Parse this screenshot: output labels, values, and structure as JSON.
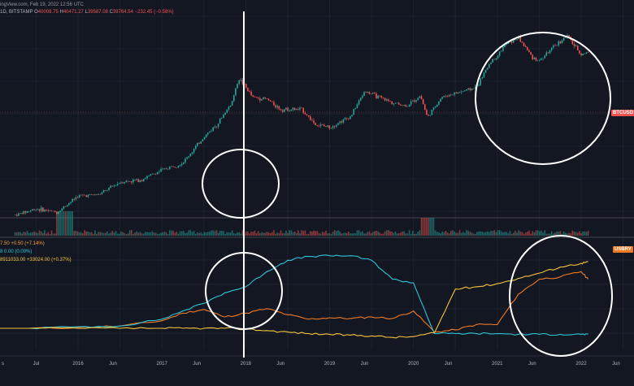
{
  "header": {
    "source_line": "ingView.com, Feb 19, 2022 12:56 UTC",
    "symbol": "1D, BITSTAMP",
    "open_label": "O",
    "open": "40008.75",
    "high_label": "H",
    "high": "40471.27",
    "low_label": "L",
    "low": "39587.08",
    "close_label": "C",
    "close": "39764.54",
    "change": "−232.45 (−0.58%)"
  },
  "price_tag": "BTCUSD",
  "indicator_tag": "USBRY",
  "indicators": [
    {
      "text": "7.50  +0.50 (+7.14%)",
      "color": "#ff9f43"
    },
    {
      "text": "8  0.00 (0.00%)",
      "color": "#26c6da"
    },
    {
      "text": "8911033.00  +33024.00 (+0.37%)",
      "color": "#f6c33b"
    }
  ],
  "colors": {
    "background": "#131722",
    "up": "#26a69a",
    "down": "#ef5350",
    "series_orange": "#f07a22",
    "series_cyan": "#2ec4dc",
    "series_yellow": "#f6c33b",
    "annotation": "#ffffff"
  },
  "annotations": [
    "circle",
    "circle",
    "circle",
    "circle",
    "vertical-line"
  ],
  "chart_data": [
    {
      "type": "line",
      "title": "BTCUSD",
      "style": "candlestick",
      "x": [
        "2015-04",
        "2015-07",
        "2015-10",
        "2016-01",
        "2016-04",
        "2016-07",
        "2016-10",
        "2017-01",
        "2017-04",
        "2017-07",
        "2017-09",
        "2017-11",
        "2017-12",
        "2018-01",
        "2018-02",
        "2018-04",
        "2018-06",
        "2018-09",
        "2018-11",
        "2019-01",
        "2019-04",
        "2019-06",
        "2019-07",
        "2019-10",
        "2019-12",
        "2020-02",
        "2020-03",
        "2020-05",
        "2020-08",
        "2020-10",
        "2020-12",
        "2021-01",
        "2021-02",
        "2021-04",
        "2021-06",
        "2021-07",
        "2021-09",
        "2021-11",
        "2021-12",
        "2022-01",
        "2022-02"
      ],
      "values": [
        230,
        280,
        250,
        420,
        440,
        650,
        700,
        950,
        1200,
        2700,
        4200,
        8000,
        17500,
        13000,
        9500,
        9000,
        6500,
        6500,
        4000,
        3700,
        5200,
        11500,
        10500,
        8000,
        7200,
        10000,
        5000,
        9500,
        11500,
        13000,
        29000,
        35000,
        49000,
        63000,
        34000,
        30000,
        46000,
        67000,
        49000,
        37000,
        39764
      ],
      "xlabel": "",
      "ylabel": "",
      "grid": true
    },
    {
      "type": "line",
      "x": [
        "2015-06",
        "2016-01",
        "2016-07",
        "2017-01",
        "2017-04",
        "2017-07",
        "2017-10",
        "2018-01",
        "2018-04",
        "2018-07",
        "2018-10",
        "2019-01",
        "2019-04",
        "2019-07",
        "2019-10",
        "2020-01",
        "2020-04",
        "2020-07",
        "2020-10",
        "2021-01",
        "2021-04",
        "2021-07",
        "2021-10",
        "2022-01",
        "2022-02"
      ],
      "series": [
        {
          "color": "orange",
          "values": [
            1.0,
            1.1,
            1.3,
            2.0,
            3.0,
            3.5,
            2.5,
            3.0,
            3.6,
            2.8,
            2.2,
            2.4,
            2.3,
            2.5,
            2.3,
            3.3,
            0.5,
            0.8,
            1.5,
            1.5,
            5.5,
            7.5,
            7.8,
            8.5,
            7.5
          ]
        },
        {
          "color": "cyan",
          "values": [
            1.0,
            1.2,
            1.3,
            2.2,
            3.3,
            4.3,
            5.7,
            6.5,
            8.5,
            10.0,
            10.5,
            10.6,
            10.6,
            10.0,
            7.5,
            7.0,
            0.3,
            0.3,
            0.3,
            0.3,
            0.2,
            0.2,
            0.2,
            0.2,
            0.2
          ]
        },
        {
          "color": "yellow",
          "values": [
            1.0,
            1.0,
            1.0,
            1.0,
            1.0,
            1.0,
            1.0,
            0.9,
            0.7,
            0.5,
            0.3,
            0.2,
            0.1,
            0.0,
            -0.2,
            -0.1,
            0.4,
            6.2,
            6.5,
            6.9,
            7.6,
            8.3,
            9.1,
            9.6,
            9.8
          ]
        }
      ],
      "grid": true
    }
  ],
  "x_ticks": [
    "s",
    "Jul",
    "2016",
    "Jun",
    "2017",
    "Jun",
    "2018",
    "Jun",
    "2019",
    "Jun",
    "2020",
    "Jun",
    "2021",
    "Jun",
    "2022",
    "Jun"
  ]
}
